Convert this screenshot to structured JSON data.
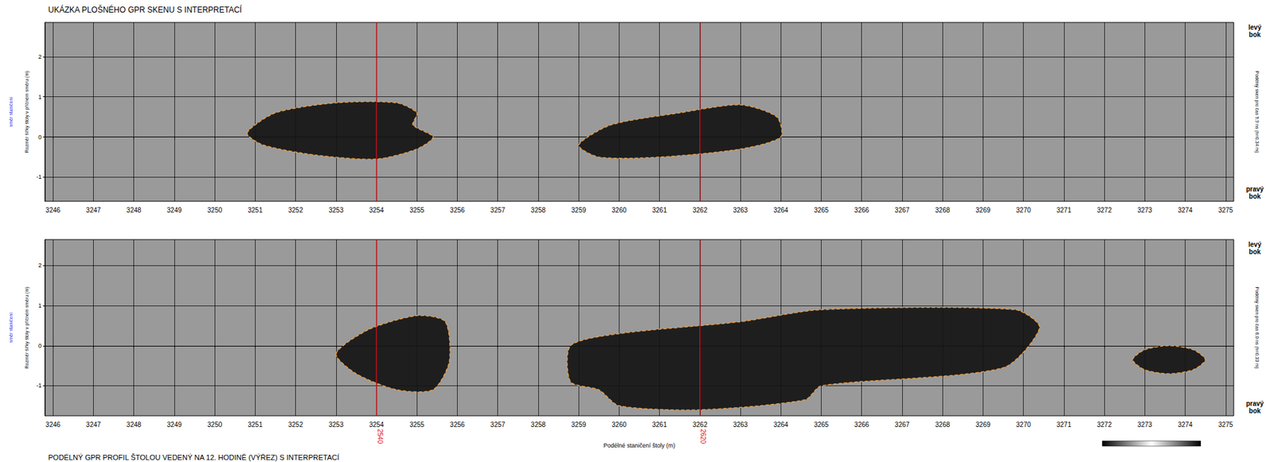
{
  "chart_data": [
    {
      "type": "polygon",
      "title": "UKÁZKA PLOŠNÉHO GPR SKENU S INTERPRETACÍ",
      "ylabel": "Rozměr šířky štoly v příčném směru (m)",
      "direction_label": "směr staničení",
      "right_label": "Podélný sken pro čas 9,9 ns (h=0,34 m)",
      "side_labels": {
        "top": "levý bok",
        "bottom": "pravý bok"
      },
      "xlim": [
        3245.8,
        3275.2
      ],
      "xticks": [
        3246,
        3247,
        3248,
        3249,
        3250,
        3251,
        3252,
        3253,
        3254,
        3255,
        3256,
        3257,
        3258,
        3259,
        3260,
        3261,
        3262,
        3263,
        3264,
        3265,
        3266,
        3267,
        3268,
        3269,
        3270,
        3271,
        3272,
        3273,
        3274,
        3275
      ],
      "ylim": [
        -1.6,
        2.85
      ],
      "yticks": [
        -1,
        0,
        1,
        2
      ],
      "grid": true,
      "color": "#f0a040",
      "markers": [
        3254,
        3262
      ],
      "anomalies": [
        {
          "points": [
            [
              3250.8,
              0.1
            ],
            [
              3251.5,
              0.6
            ],
            [
              3253,
              0.85
            ],
            [
              3254.5,
              0.85
            ],
            [
              3255,
              0.6
            ],
            [
              3254.9,
              0.3
            ],
            [
              3255.4,
              0
            ],
            [
              3255,
              -0.3
            ],
            [
              3254,
              -0.55
            ],
            [
              3252.5,
              -0.45
            ],
            [
              3251.2,
              -0.2
            ]
          ]
        },
        {
          "points": [
            [
              3259,
              -0.2
            ],
            [
              3259.8,
              0.3
            ],
            [
              3261.5,
              0.6
            ],
            [
              3263,
              0.8
            ],
            [
              3263.9,
              0.5
            ],
            [
              3264,
              0
            ],
            [
              3263,
              -0.3
            ],
            [
              3261,
              -0.5
            ],
            [
              3259.5,
              -0.5
            ]
          ]
        }
      ]
    },
    {
      "type": "polygon",
      "title": "PODÉLNÝ GPR PROFIL ŠTOLOU VEDENÝ NA 12. HODINĚ (VÝŘEZ) S INTERPRETACÍ",
      "xlabel": "Podélné staničení štoly (m)",
      "ylabel": "Rozměr šířky štoly v příčném směru (m)",
      "direction_label": "směr staničení",
      "right_label": "Podélný sken pro čas 6,0 ns (h=0,33 m)",
      "side_labels": {
        "top": "levý bok",
        "bottom": "pravý bok"
      },
      "xlim": [
        3245.8,
        3275.2
      ],
      "xticks": [
        3246,
        3247,
        3248,
        3249,
        3250,
        3251,
        3252,
        3253,
        3254,
        3255,
        3256,
        3257,
        3258,
        3259,
        3260,
        3261,
        3262,
        3263,
        3264,
        3265,
        3266,
        3267,
        3268,
        3269,
        3270,
        3271,
        3272,
        3273,
        3274,
        3275
      ],
      "ylim": [
        -1.75,
        2.65
      ],
      "yticks": [
        -1,
        0,
        1,
        2
      ],
      "grid": true,
      "color": "#f0a040",
      "markers": [
        {
          "value": 3254,
          "label": "2540"
        },
        {
          "value": 3262,
          "label": "2620"
        }
      ],
      "anomalies": [
        {
          "points": [
            [
              3253,
              -0.2
            ],
            [
              3253.8,
              0.4
            ],
            [
              3255,
              0.75
            ],
            [
              3255.7,
              0.6
            ],
            [
              3255.8,
              -0.4
            ],
            [
              3255.4,
              -1.1
            ],
            [
              3254.5,
              -1.1
            ],
            [
              3253.5,
              -0.7
            ]
          ]
        },
        {
          "points": [
            [
              3258.8,
              0
            ],
            [
              3260,
              0.3
            ],
            [
              3263,
              0.6
            ],
            [
              3265,
              0.9
            ],
            [
              3269.8,
              0.9
            ],
            [
              3270.4,
              0.45
            ],
            [
              3269.5,
              -0.55
            ],
            [
              3265,
              -1.0
            ],
            [
              3264.6,
              -1.35
            ],
            [
              3262,
              -1.6
            ],
            [
              3260,
              -1.5
            ],
            [
              3259.5,
              -1.1
            ],
            [
              3258.8,
              -0.9
            ]
          ]
        },
        {
          "points": [
            [
              3272.7,
              -0.35
            ],
            [
              3273,
              -0.1
            ],
            [
              3273.6,
              0
            ],
            [
              3274.2,
              -0.1
            ],
            [
              3274.5,
              -0.35
            ],
            [
              3274.2,
              -0.6
            ],
            [
              3273.6,
              -0.7
            ],
            [
              3273,
              -0.6
            ]
          ]
        }
      ]
    }
  ]
}
